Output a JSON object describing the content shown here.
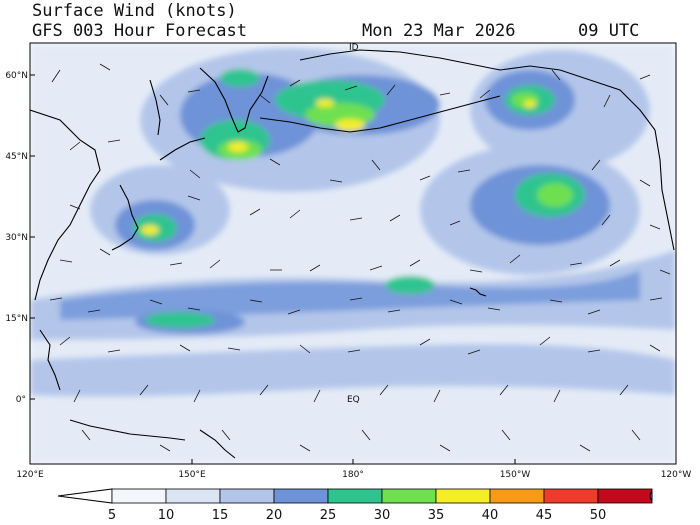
{
  "header": {
    "title_line1": "Surface Wind (knots)",
    "title_line2": "GFS 003 Hour Forecast",
    "date": "Mon 23 Mar 2026",
    "time": "09 UTC"
  },
  "map": {
    "lat_labels": [
      "60°N",
      "45°N",
      "30°N",
      "15°N",
      "0°"
    ],
    "lon_labels": [
      "120°E",
      "150°E",
      "180°",
      "150°W",
      "120°W"
    ],
    "annotations": {
      "equator": "EQ",
      "dateline_marker": "ID"
    }
  },
  "colorbar": {
    "labels": [
      "5",
      "10",
      "15",
      "20",
      "25",
      "30",
      "35",
      "40",
      "45",
      "50"
    ],
    "colors": [
      "#f4f6fb",
      "#dbe4f4",
      "#b3c6ea",
      "#6e93d8",
      "#2fc48f",
      "#6ee04f",
      "#f4ee25",
      "#f79a16",
      "#ef3b2c",
      "#c1081c"
    ],
    "arrow_color": "#d22fd6"
  }
}
